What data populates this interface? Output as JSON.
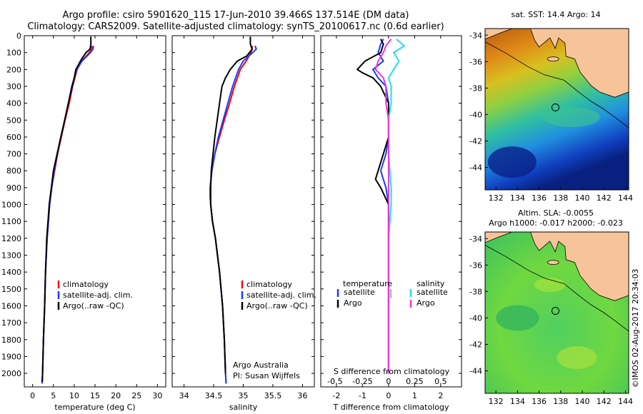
{
  "title_line1": "Argo profile: csiro 5901620_115 17-Jun-2010 39.466S 137.514E (DM data)",
  "title_line2": "Climatology: CARS2009. Satellite-adjusted climatology: synTS_20100617.nc (0.6d earlier)",
  "colors": {
    "climatology": "#ff0000",
    "satellite": "#1a3cff",
    "argo": "#000000",
    "sat_salinity": "#22dde8",
    "argo_salinity": "#ee33dd"
  },
  "depth_ticks": [
    0,
    100,
    200,
    300,
    400,
    500,
    600,
    700,
    800,
    900,
    1000,
    1100,
    1200,
    1300,
    1400,
    1500,
    1600,
    1700,
    1800,
    1900,
    2000
  ],
  "legend": {
    "climatology": "climatology",
    "satellite": "satellite-adj. clim.",
    "argo": "Argo(..raw -QC)"
  },
  "credits": {
    "line1": "Argo Australia",
    "line2": "PI: Susan Wijffels"
  },
  "diff_legend": {
    "temperature": "temperature",
    "salinity": "salinity",
    "satellite": "satellite",
    "argo": "Argo"
  },
  "map_sst": {
    "title": "sat. SST: 14.4 Argo: 14"
  },
  "map_sla": {
    "title_line1": "Altim. SLA: -0.0055",
    "title_line2": "Argo h1000: -0.017 h2000: -0.023"
  },
  "map_xticks": [
    132,
    134,
    136,
    138,
    140,
    142,
    144
  ],
  "map_yticks": [
    -34,
    -36,
    -38,
    -40,
    -42,
    -44
  ],
  "map_argo_position": {
    "lon": 137.514,
    "lat": -39.466
  },
  "watermark": "©IMOS 02-Aug-2017 20:34:03",
  "chart_data": [
    {
      "type": "line",
      "xlabel": "temperature (deg C)",
      "xlim": [
        -2,
        32
      ],
      "ylim": [
        2080,
        0
      ],
      "xticks": [
        0,
        5,
        10,
        15,
        20,
        25,
        30
      ],
      "series": [
        {
          "name": "climatology",
          "depth": [
            60,
            80,
            100,
            150,
            200,
            300,
            400,
            500,
            600,
            700,
            800,
            900,
            1000,
            1100,
            1200,
            1400,
            1600,
            1800,
            2000,
            2060
          ],
          "values": [
            14.3,
            14.2,
            13.6,
            11.8,
            10.7,
            9.6,
            8.8,
            7.8,
            6.9,
            6.0,
            5.3,
            4.6,
            4.1,
            3.8,
            3.5,
            3.1,
            2.9,
            2.6,
            2.4,
            2.3
          ]
        },
        {
          "name": "satellite-adj. clim.",
          "depth": [
            60,
            80,
            100,
            150,
            200,
            300,
            400,
            500,
            600,
            700,
            800,
            900,
            1000,
            1100,
            1200,
            1400,
            1600,
            1800,
            2000,
            2060
          ],
          "values": [
            14.6,
            14.5,
            13.9,
            11.9,
            10.6,
            9.4,
            8.6,
            7.7,
            6.8,
            5.9,
            5.2,
            4.6,
            4.1,
            3.8,
            3.5,
            3.1,
            2.9,
            2.6,
            2.4,
            2.3
          ]
        },
        {
          "name": "Argo(..raw -QC)",
          "depth": [
            5,
            50,
            80,
            100,
            150,
            200,
            250,
            300,
            400,
            500,
            600,
            700,
            800,
            900,
            1000,
            1100,
            1200,
            1400,
            1600,
            1800,
            2000,
            2050
          ],
          "values": [
            14.0,
            14.0,
            13.8,
            12.8,
            11.5,
            10.4,
            10.0,
            9.5,
            8.6,
            7.7,
            6.8,
            5.9,
            5.0,
            4.5,
            4.0,
            3.7,
            3.4,
            3.1,
            2.9,
            2.6,
            2.4,
            2.3
          ]
        }
      ]
    },
    {
      "type": "line",
      "xlabel": "salinity",
      "xlim": [
        33.8,
        36.2
      ],
      "ylim": [
        2080,
        0
      ],
      "xticks": [
        34,
        34.5,
        35,
        35.5,
        36
      ],
      "series": [
        {
          "name": "climatology",
          "depth": [
            60,
            80,
            100,
            150,
            200,
            300,
            400,
            500,
            600,
            700,
            800,
            900,
            950,
            1000,
            1100,
            1200,
            1400,
            1600,
            1800,
            2000,
            2060
          ],
          "values": [
            35.15,
            35.15,
            35.13,
            35.05,
            34.95,
            34.85,
            34.77,
            34.68,
            34.6,
            34.52,
            34.47,
            34.44,
            34.44,
            34.45,
            34.48,
            34.53,
            34.6,
            34.65,
            34.68,
            34.7,
            34.71
          ]
        },
        {
          "name": "satellite-adj. clim.",
          "depth": [
            60,
            80,
            100,
            150,
            200,
            300,
            400,
            500,
            600,
            700,
            800,
            900,
            950,
            1000,
            1100,
            1200,
            1400,
            1600,
            1800,
            2000,
            2060
          ],
          "values": [
            35.2,
            35.22,
            35.16,
            35.0,
            34.92,
            34.82,
            34.74,
            34.66,
            34.58,
            34.52,
            34.47,
            34.44,
            34.44,
            34.45,
            34.48,
            34.53,
            34.6,
            34.65,
            34.68,
            34.7,
            34.71
          ]
        },
        {
          "name": "Argo(..raw -QC)",
          "depth": [
            5,
            50,
            80,
            120,
            150,
            200,
            250,
            300,
            400,
            500,
            600,
            700,
            800,
            900,
            1000,
            1100,
            1200,
            1400,
            1600,
            1800,
            2000
          ],
          "values": [
            35.12,
            35.12,
            35.15,
            35.06,
            34.9,
            34.78,
            34.7,
            34.64,
            34.6,
            34.56,
            34.52,
            34.49,
            34.46,
            34.45,
            34.45,
            34.48,
            34.53,
            34.6,
            34.65,
            34.68,
            34.7
          ]
        }
      ]
    },
    {
      "type": "line",
      "xlabel": "T difference from climatology",
      "xlabel2": "S difference from climatology",
      "xlim": [
        -2.6,
        2.8
      ],
      "ylim": [
        2080,
        0
      ],
      "xticks": [
        -2,
        -1,
        0,
        1,
        2
      ],
      "xticks2_labels": [
        "-0.5",
        "-0.25",
        "0",
        "0.25",
        "0.5"
      ],
      "xticks2_positions": [
        -2,
        -1,
        0,
        1,
        2
      ],
      "series": [
        {
          "name": "temperature satellite",
          "depth": [
            20,
            50,
            100,
            150,
            200,
            250,
            300,
            400,
            500,
            600,
            700,
            800,
            900,
            1000,
            1200,
            1600,
            2000
          ],
          "values": [
            -0.2,
            -0.3,
            -0.4,
            -0.2,
            -0.6,
            -0.4,
            -0.1,
            0.0,
            0.0,
            0.0,
            -0.1,
            -0.3,
            -0.1,
            0.0,
            0.0,
            0.0,
            0.0
          ]
        },
        {
          "name": "temperature Argo",
          "depth": [
            20,
            50,
            100,
            150,
            200,
            220,
            250,
            300,
            400,
            500,
            600,
            700,
            800,
            850,
            900,
            1000,
            1200,
            1600,
            2000
          ],
          "values": [
            -0.3,
            -0.2,
            -0.3,
            -0.9,
            -1.2,
            -1.0,
            -0.6,
            -0.3,
            0.0,
            0.0,
            0.0,
            -0.2,
            -0.4,
            -0.5,
            -0.3,
            0.0,
            0.0,
            0.0,
            0.0
          ]
        },
        {
          "name": "salinity satellite",
          "depth": [
            20,
            60,
            100,
            150,
            200,
            250,
            300,
            400,
            500,
            700,
            900,
            1000,
            1200,
            1600,
            2000
          ],
          "values": [
            0.3,
            0.6,
            0.2,
            0.4,
            0.2,
            0.0,
            0.1,
            0.1,
            0.0,
            0.0,
            0.1,
            0.1,
            0.0,
            0.0,
            0.0
          ]
        },
        {
          "name": "salinity Argo",
          "depth": [
            20,
            60,
            100,
            150,
            200,
            250,
            300,
            400,
            500,
            700,
            900,
            1000,
            1200,
            1600,
            2000
          ],
          "values": [
            0.1,
            -0.1,
            -0.2,
            -0.4,
            -0.5,
            -0.2,
            -0.1,
            -0.1,
            0.0,
            0.0,
            0.0,
            0.0,
            0.0,
            0.0,
            0.0
          ]
        }
      ]
    }
  ]
}
